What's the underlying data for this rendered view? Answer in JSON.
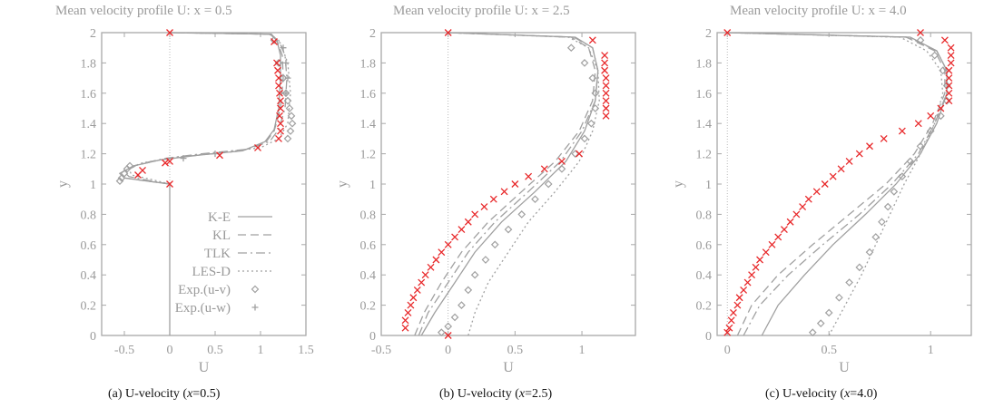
{
  "colors": {
    "axis": "#a8a8a8",
    "model": "#a0a0a0",
    "exp": "#a0a0a0",
    "highlight": "#e8282a",
    "caption": "#111111"
  },
  "legend": [
    {
      "label": "K-E",
      "style": "solid"
    },
    {
      "label": "KL",
      "style": "dashed"
    },
    {
      "label": "TLK",
      "style": "dashdot"
    },
    {
      "label": "LES-D",
      "style": "dotted"
    },
    {
      "label": "Exp.(u-v)",
      "style": "diamond"
    },
    {
      "label": "Exp.(u-w)",
      "style": "plus"
    }
  ],
  "chart_data": [
    {
      "type": "line",
      "title": "Mean velocity profile U:   x = 0.5",
      "caption_prefix": "(a) U-velocity  (",
      "caption_var": "x",
      "caption_suffix": "=0.5)",
      "xlabel": "U",
      "ylabel": "y",
      "xlim": [
        -0.75,
        1.5
      ],
      "ylim": [
        0,
        2
      ],
      "xticks": [
        -0.5,
        0,
        0.5,
        1,
        1.5
      ],
      "xtick_labels": [
        "-0.5",
        "0",
        "0.5",
        "1",
        "1.5"
      ],
      "yticks": [
        0,
        0.2,
        0.4,
        0.6,
        0.8,
        1,
        1.2,
        1.4,
        1.6,
        1.8,
        2
      ],
      "ytick_labels": [
        "0",
        "0.2",
        "0.4",
        "0.6",
        "0.8",
        "1",
        "1.2",
        "1.4",
        "1.6",
        "1.8",
        "2"
      ],
      "zero_line_x": 0,
      "series": [
        {
          "name": "K-E",
          "style": "solid",
          "x": [
            0,
            0,
            -0.25,
            -0.5,
            -0.55,
            -0.4,
            -0.1,
            0.3,
            0.8,
            1.05,
            1.15,
            1.2,
            1.22,
            1.22,
            1.18,
            1.12,
            0
          ],
          "y": [
            0,
            1.0,
            1.02,
            1.04,
            1.07,
            1.12,
            1.16,
            1.19,
            1.22,
            1.28,
            1.36,
            1.5,
            1.7,
            1.85,
            1.95,
            1.99,
            2
          ]
        },
        {
          "name": "KL",
          "style": "dashed",
          "x": [
            0,
            -0.25,
            -0.5,
            -0.55,
            -0.4,
            -0.1,
            0.3,
            0.8,
            1.05,
            1.15,
            1.22,
            1.25,
            1.24,
            1.18,
            1.1,
            0
          ],
          "y": [
            1.0,
            1.02,
            1.04,
            1.07,
            1.12,
            1.16,
            1.19,
            1.22,
            1.27,
            1.35,
            1.5,
            1.7,
            1.85,
            1.95,
            1.99,
            2
          ]
        },
        {
          "name": "TLK",
          "style": "dashdot",
          "x": [
            0,
            -0.2,
            -0.45,
            -0.5,
            -0.35,
            -0.05,
            0.35,
            0.85,
            1.1,
            1.2,
            1.27,
            1.29,
            1.27,
            1.2,
            1.1,
            0
          ],
          "y": [
            1.0,
            1.02,
            1.05,
            1.08,
            1.13,
            1.17,
            1.2,
            1.23,
            1.28,
            1.36,
            1.5,
            1.7,
            1.85,
            1.95,
            1.99,
            2
          ]
        },
        {
          "name": "LES-D",
          "style": "dotted",
          "x": [
            0,
            -0.2,
            -0.42,
            -0.45,
            -0.3,
            0.1,
            0.6,
            1.0,
            1.2,
            1.3,
            1.33,
            1.3,
            1.22,
            1.1,
            0
          ],
          "y": [
            1.0,
            1.03,
            1.06,
            1.1,
            1.14,
            1.18,
            1.21,
            1.24,
            1.3,
            1.4,
            1.6,
            1.8,
            1.93,
            1.99,
            2
          ]
        },
        {
          "name": "Exp.(u-v)",
          "style": "diamond",
          "x": [
            -0.55,
            -0.53,
            -0.5,
            -0.47,
            -0.44,
            1.3,
            1.33,
            1.35,
            1.34,
            1.32,
            1.3,
            1.28,
            1.25,
            1.2,
            1.15
          ],
          "y": [
            1.02,
            1.04,
            1.07,
            1.1,
            1.12,
            1.3,
            1.35,
            1.4,
            1.45,
            1.5,
            1.55,
            1.6,
            1.7,
            1.8,
            1.95
          ]
        },
        {
          "name": "Exp.(u-w)",
          "style": "plus",
          "x": [
            0.15,
            0.5,
            1.28,
            1.3,
            1.28,
            1.25
          ],
          "y": [
            1.17,
            1.2,
            1.6,
            1.7,
            1.8,
            1.9
          ]
        },
        {
          "style": "cross",
          "x": [
            0,
            0,
            0.55,
            0.97,
            1.2,
            1.22,
            1.22,
            1.21,
            1.22,
            1.22,
            1.21,
            1.2,
            1.2,
            1.19,
            1.18,
            1.15,
            -0.35,
            -0.3,
            -0.05,
            0
          ],
          "y": [
            2,
            1.0,
            1.19,
            1.24,
            1.3,
            1.35,
            1.4,
            1.45,
            1.5,
            1.55,
            1.6,
            1.65,
            1.7,
            1.75,
            1.8,
            1.94,
            1.06,
            1.09,
            1.14,
            1.15
          ]
        }
      ]
    },
    {
      "type": "line",
      "title": "Mean velocity profile U:   x = 2.5",
      "caption_prefix": "(b) U-velocity  (",
      "caption_var": "x",
      "caption_suffix": "=2.5)",
      "xlabel": "U",
      "ylabel": "y",
      "xlim": [
        -0.5,
        1.4
      ],
      "ylim": [
        0,
        2
      ],
      "xticks": [
        -0.5,
        0,
        0.5,
        1
      ],
      "xtick_labels": [
        "-0.5",
        "0",
        "0.5",
        "1"
      ],
      "yticks": [
        0,
        0.2,
        0.4,
        0.6,
        0.8,
        1,
        1.2,
        1.4,
        1.6,
        1.8,
        2
      ],
      "ytick_labels": [
        "0",
        "0.2",
        "0.4",
        "0.6",
        "0.8",
        "1",
        "1.2",
        "1.4",
        "1.6",
        "1.8",
        "2"
      ],
      "zero_line_x": 0,
      "series": [
        {
          "name": "K-E",
          "style": "solid",
          "x": [
            -0.2,
            -0.1,
            0.05,
            0.2,
            0.4,
            0.65,
            0.88,
            1.02,
            1.1,
            1.12,
            1.08,
            0.95,
            0
          ],
          "y": [
            0,
            0.15,
            0.35,
            0.55,
            0.75,
            0.95,
            1.15,
            1.35,
            1.55,
            1.75,
            1.9,
            1.97,
            2
          ]
        },
        {
          "name": "KL",
          "style": "dashed",
          "x": [
            -0.25,
            -0.18,
            -0.05,
            0.1,
            0.3,
            0.55,
            0.8,
            0.98,
            1.08,
            1.1,
            1.05,
            0.92,
            0
          ],
          "y": [
            0,
            0.15,
            0.35,
            0.55,
            0.75,
            0.95,
            1.15,
            1.35,
            1.55,
            1.75,
            1.9,
            1.97,
            2
          ]
        },
        {
          "name": "TLK",
          "style": "dashdot",
          "x": [
            -0.22,
            -0.15,
            0.0,
            0.15,
            0.35,
            0.6,
            0.84,
            1.0,
            1.1,
            1.12,
            1.08,
            0.94,
            0
          ],
          "y": [
            0,
            0.15,
            0.35,
            0.55,
            0.75,
            0.95,
            1.15,
            1.35,
            1.55,
            1.75,
            1.9,
            1.97,
            2
          ]
        },
        {
          "name": "LES-D",
          "style": "dotted",
          "x": [
            0.15,
            0.2,
            0.3,
            0.45,
            0.6,
            0.8,
            0.98,
            1.08,
            1.13,
            1.12,
            1.05,
            0.9,
            0
          ],
          "y": [
            0,
            0.15,
            0.35,
            0.55,
            0.75,
            0.95,
            1.15,
            1.35,
            1.55,
            1.75,
            1.9,
            1.97,
            2
          ]
        },
        {
          "name": "Exp.(u-v)",
          "style": "diamond",
          "x": [
            -0.05,
            0.0,
            0.05,
            0.1,
            0.15,
            0.2,
            0.28,
            0.35,
            0.45,
            0.55,
            0.65,
            0.75,
            0.85,
            0.95,
            1.02,
            1.07,
            1.1,
            1.1,
            1.08,
            1.02,
            0.92
          ],
          "y": [
            0.02,
            0.06,
            0.12,
            0.2,
            0.3,
            0.4,
            0.5,
            0.6,
            0.7,
            0.8,
            0.9,
            1.0,
            1.1,
            1.2,
            1.3,
            1.4,
            1.5,
            1.6,
            1.7,
            1.8,
            1.9
          ]
        },
        {
          "style": "cross",
          "x": [
            0,
            -0.32,
            -0.32,
            -0.3,
            -0.28,
            -0.26,
            -0.23,
            -0.2,
            -0.17,
            -0.13,
            -0.09,
            -0.05,
            0.0,
            0.05,
            0.1,
            0.15,
            0.2,
            0.27,
            0.34,
            0.42,
            0.5,
            0.6,
            0.72,
            0.85,
            0.98,
            1.18,
            1.18,
            1.18,
            1.18,
            1.18,
            1.18,
            1.17,
            1.17,
            1.17,
            1.08,
            0
          ],
          "y": [
            0,
            0.05,
            0.1,
            0.15,
            0.2,
            0.25,
            0.3,
            0.35,
            0.4,
            0.45,
            0.5,
            0.55,
            0.6,
            0.65,
            0.7,
            0.75,
            0.8,
            0.85,
            0.9,
            0.95,
            1.0,
            1.05,
            1.1,
            1.15,
            1.2,
            1.45,
            1.5,
            1.55,
            1.6,
            1.65,
            1.7,
            1.75,
            1.8,
            1.85,
            1.95,
            2
          ]
        }
      ]
    },
    {
      "type": "line",
      "title": "Mean velocity profile U:   x = 4.0",
      "caption_prefix": "(c) U-velocity  (",
      "caption_var": "x",
      "caption_suffix": "=4.0)",
      "xlabel": "U",
      "ylabel": "y",
      "xlim": [
        -0.05,
        1.2
      ],
      "ylim": [
        0,
        2
      ],
      "xticks": [
        0,
        0.5,
        1
      ],
      "xtick_labels": [
        "0",
        "0.5",
        "1"
      ],
      "yticks": [
        0,
        0.2,
        0.4,
        0.6,
        0.8,
        1,
        1.2,
        1.4,
        1.6,
        1.8,
        2
      ],
      "ytick_labels": [
        "0",
        "0.2",
        "0.4",
        "0.6",
        "0.8",
        "1",
        "1.2",
        "1.4",
        "1.6",
        "1.8",
        "2"
      ],
      "zero_line_x": 0,
      "series": [
        {
          "name": "K-E",
          "style": "solid",
          "x": [
            0.17,
            0.25,
            0.38,
            0.52,
            0.68,
            0.83,
            0.95,
            1.03,
            1.08,
            1.08,
            1.03,
            0.9,
            0
          ],
          "y": [
            0,
            0.2,
            0.4,
            0.6,
            0.8,
            1.0,
            1.2,
            1.4,
            1.6,
            1.75,
            1.88,
            1.97,
            2
          ]
        },
        {
          "name": "KL",
          "style": "dashed",
          "x": [
            0.05,
            0.12,
            0.25,
            0.42,
            0.6,
            0.78,
            0.92,
            1.01,
            1.07,
            1.07,
            1.02,
            0.88,
            0
          ],
          "y": [
            0,
            0.2,
            0.4,
            0.6,
            0.8,
            1.0,
            1.2,
            1.4,
            1.6,
            1.75,
            1.88,
            1.97,
            2
          ]
        },
        {
          "name": "TLK",
          "style": "dashdot",
          "x": [
            0.08,
            0.16,
            0.3,
            0.47,
            0.65,
            0.81,
            0.94,
            1.02,
            1.08,
            1.08,
            1.03,
            0.89,
            0
          ],
          "y": [
            0,
            0.2,
            0.4,
            0.6,
            0.8,
            1.0,
            1.2,
            1.4,
            1.6,
            1.75,
            1.88,
            1.97,
            2
          ]
        },
        {
          "name": "LES-D",
          "style": "dotted",
          "x": [
            0.5,
            0.58,
            0.66,
            0.73,
            0.8,
            0.87,
            0.95,
            1.02,
            1.06,
            1.05,
            0.98,
            0.85,
            0
          ],
          "y": [
            0,
            0.2,
            0.4,
            0.6,
            0.8,
            1.0,
            1.2,
            1.4,
            1.6,
            1.75,
            1.88,
            1.97,
            2
          ]
        },
        {
          "name": "Exp.(u-v)",
          "style": "diamond",
          "x": [
            0.42,
            0.46,
            0.5,
            0.55,
            0.6,
            0.65,
            0.7,
            0.73,
            0.76,
            0.79,
            0.82,
            0.86,
            0.9,
            0.95,
            1.0,
            1.05,
            1.08,
            1.08,
            1.06,
            1.02,
            0.95
          ],
          "y": [
            0.02,
            0.08,
            0.15,
            0.25,
            0.35,
            0.45,
            0.55,
            0.65,
            0.75,
            0.85,
            0.95,
            1.05,
            1.15,
            1.25,
            1.35,
            1.45,
            1.55,
            1.65,
            1.75,
            1.85,
            1.95
          ]
        },
        {
          "style": "cross",
          "x": [
            0,
            0.01,
            0.02,
            0.03,
            0.05,
            0.06,
            0.08,
            0.1,
            0.12,
            0.14,
            0.16,
            0.19,
            0.22,
            0.25,
            0.28,
            0.31,
            0.34,
            0.37,
            0.4,
            0.44,
            0.48,
            0.52,
            0.56,
            0.6,
            0.65,
            0.7,
            0.77,
            0.86,
            0.94,
            1.0,
            1.05,
            1.09,
            1.09,
            1.09,
            1.09,
            1.09,
            1.1,
            1.1,
            1.1,
            1.07,
            0.95,
            0
          ],
          "y": [
            0.02,
            0.05,
            0.1,
            0.15,
            0.2,
            0.25,
            0.3,
            0.35,
            0.4,
            0.45,
            0.5,
            0.55,
            0.6,
            0.65,
            0.7,
            0.75,
            0.8,
            0.85,
            0.9,
            0.95,
            1.0,
            1.05,
            1.1,
            1.15,
            1.2,
            1.25,
            1.3,
            1.35,
            1.4,
            1.45,
            1.5,
            1.55,
            1.6,
            1.65,
            1.7,
            1.75,
            1.8,
            1.85,
            1.9,
            1.95,
            2.0,
            2
          ]
        }
      ]
    }
  ]
}
